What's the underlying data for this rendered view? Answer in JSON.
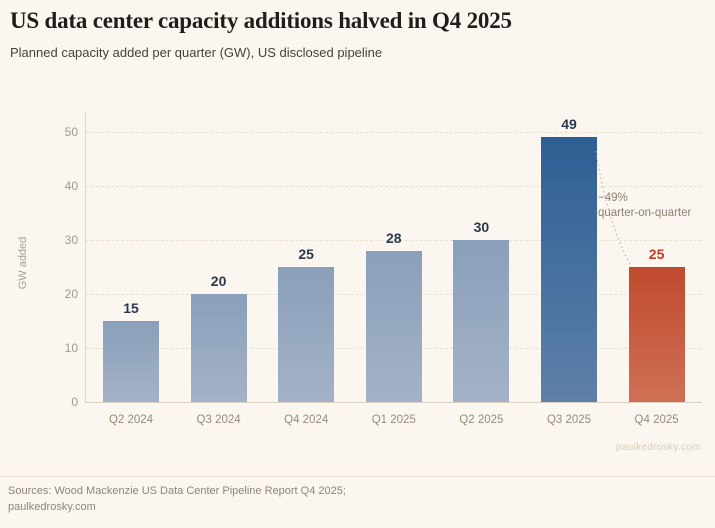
{
  "header": {
    "title": "US data center capacity additions halved in Q4 2025",
    "subtitle": "Planned capacity added per quarter (GW), US disclosed pipeline"
  },
  "chart_data": {
    "type": "bar",
    "categories": [
      "Q2 2024",
      "Q3 2024",
      "Q4 2024",
      "Q1 2025",
      "Q2 2025",
      "Q3 2025",
      "Q4 2025"
    ],
    "values": [
      15,
      20,
      25,
      28,
      30,
      49,
      25
    ],
    "bar_styles": [
      "default",
      "default",
      "default",
      "default",
      "default",
      "peak",
      "drop"
    ],
    "title": "US data center capacity additions halved in Q4 2025",
    "xlabel": "",
    "ylabel": "GW added",
    "yticks": [
      0,
      10,
      20,
      30,
      40,
      50
    ],
    "ylim": [
      0,
      50
    ],
    "grid": "faint horizontal dashed gridlines",
    "legend": "none",
    "annotation": {
      "line1": "−49%",
      "line2": "quarter-on-quarter",
      "attached_from": "Q3 2025",
      "attached_to": "Q4 2025"
    }
  },
  "colors": {
    "background": "#fbf7f0",
    "bar_default_top": "#8a9fba",
    "bar_default_bottom": "#a4b2c8",
    "bar_peak_top": "#2d5f93",
    "bar_peak_bottom": "#5e80a9",
    "bar_drop_top": "#c04a2e",
    "bar_drop_bottom": "#cf7055",
    "label_default": "#2b394e",
    "label_drop": "#c03a24",
    "axis_text": "#a09a8b",
    "annotation_text": "#8b8372"
  },
  "watermark": "paulkedrosky.com",
  "footer": {
    "line1": "Sources: Wood Mackenzie US Data Center Pipeline Report Q4 2025;",
    "line2": "paulkedrosky.com"
  }
}
